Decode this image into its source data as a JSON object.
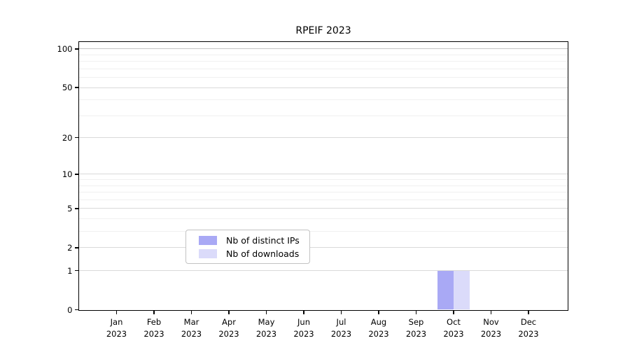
{
  "chart_data": {
    "type": "bar",
    "title": "RPEIF 2023",
    "xlabel": "",
    "ylabel": "",
    "year": "2023",
    "months": [
      "Jan",
      "Feb",
      "Mar",
      "Apr",
      "May",
      "Jun",
      "Jul",
      "Aug",
      "Sep",
      "Oct",
      "Nov",
      "Dec"
    ],
    "categories": [
      "Jan 2023",
      "Feb 2023",
      "Mar 2023",
      "Apr 2023",
      "May 2023",
      "Jun 2023",
      "Jul 2023",
      "Aug 2023",
      "Sep 2023",
      "Oct 2023",
      "Nov 2023",
      "Dec 2023"
    ],
    "series": [
      {
        "name": "Nb of distinct IPs",
        "color": "#a9a9f5",
        "values": [
          0,
          0,
          0,
          0,
          0,
          0,
          0,
          0,
          0,
          1,
          0,
          0
        ]
      },
      {
        "name": "Nb of downloads",
        "color": "#dbdbfa",
        "values": [
          0,
          0,
          0,
          0,
          0,
          0,
          0,
          0,
          0,
          1,
          0,
          0
        ]
      }
    ],
    "y_axis": {
      "scale": "log1p",
      "major_ticks": [
        0,
        1,
        2,
        5,
        10,
        20,
        50,
        100
      ],
      "minor_gridlines": [
        3,
        4,
        6,
        7,
        8,
        9,
        30,
        40,
        60,
        70,
        80,
        90
      ],
      "ylim": [
        0,
        114
      ]
    },
    "grid": true,
    "legend_position": "lower center",
    "colors": {
      "axis": "#000000",
      "grid_minor": "#f0f0f0",
      "grid_major": "#d9d9d9",
      "legend_border": "#c3c3c3",
      "background": "#ffffff"
    }
  }
}
